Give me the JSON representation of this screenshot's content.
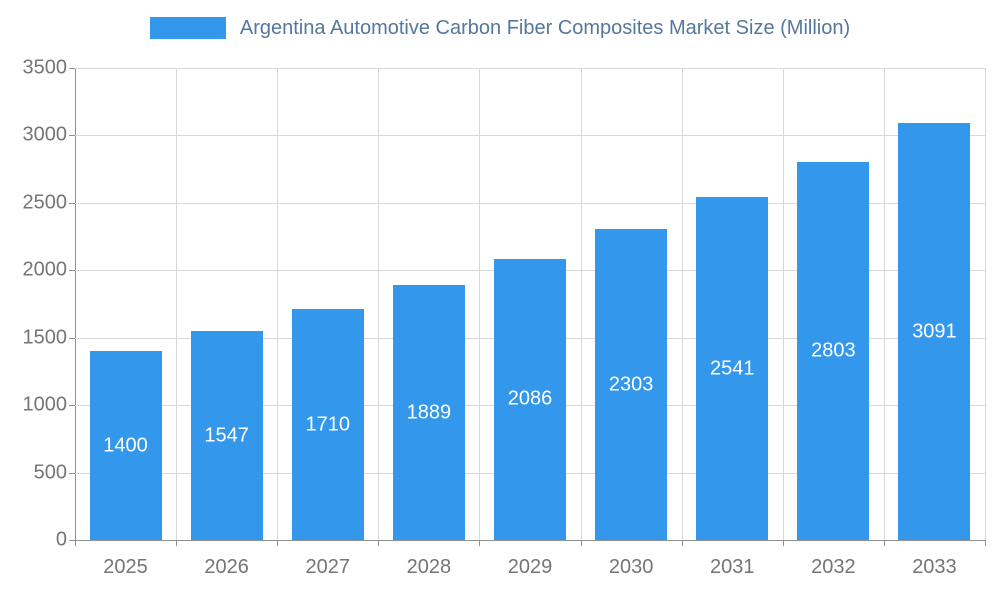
{
  "chart_data": {
    "type": "bar",
    "title": "Argentina Automotive Carbon Fiber Composites Market Size (Million)",
    "categories": [
      "2025",
      "2026",
      "2027",
      "2028",
      "2029",
      "2030",
      "2031",
      "2032",
      "2033"
    ],
    "values": [
      1400,
      1547,
      1710,
      1889,
      2086,
      2303,
      2541,
      2803,
      3091
    ],
    "xlabel": "",
    "ylabel": "",
    "ylim": [
      0,
      3500
    ],
    "ytick_step": 500,
    "grid": true,
    "legend_position": "top"
  },
  "colors": {
    "bar": "#3398EC",
    "title_text": "#54789B",
    "axis_text": "#757575",
    "grid_line": "#D9D9D9",
    "axis_line": "#8F8F8F",
    "value_label": "#FFFFFF"
  }
}
